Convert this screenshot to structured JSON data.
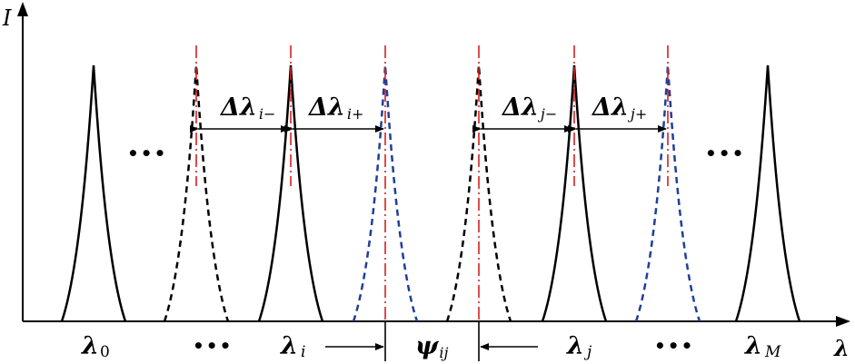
{
  "axes": {
    "y_label": "I",
    "x_label": "λ"
  },
  "colors": {
    "solid_peak": "#000000",
    "dashed_black_peak": "#000000",
    "dashed_blue_peak": "#1f3f9a",
    "center_line": "#d62020",
    "axis": "#000000"
  },
  "ellipsis": "•••",
  "spacing_labels": [
    {
      "symbol": "Δλ",
      "sub": "i−"
    },
    {
      "symbol": "Δλ",
      "sub": "i+"
    },
    {
      "symbol": "Δλ",
      "sub": "j−"
    },
    {
      "symbol": "Δλ",
      "sub": "j+"
    }
  ],
  "bottom_labels": {
    "lambda0": {
      "symbol": "λ",
      "sub": "0"
    },
    "lambda_i": {
      "symbol": "λ",
      "sub": "i"
    },
    "psi": {
      "symbol": "ψ",
      "sub": "ij"
    },
    "lambda_j": {
      "symbol": "λ",
      "sub": "j"
    },
    "lambdaM": {
      "symbol": "λ",
      "sub": "M"
    }
  }
}
